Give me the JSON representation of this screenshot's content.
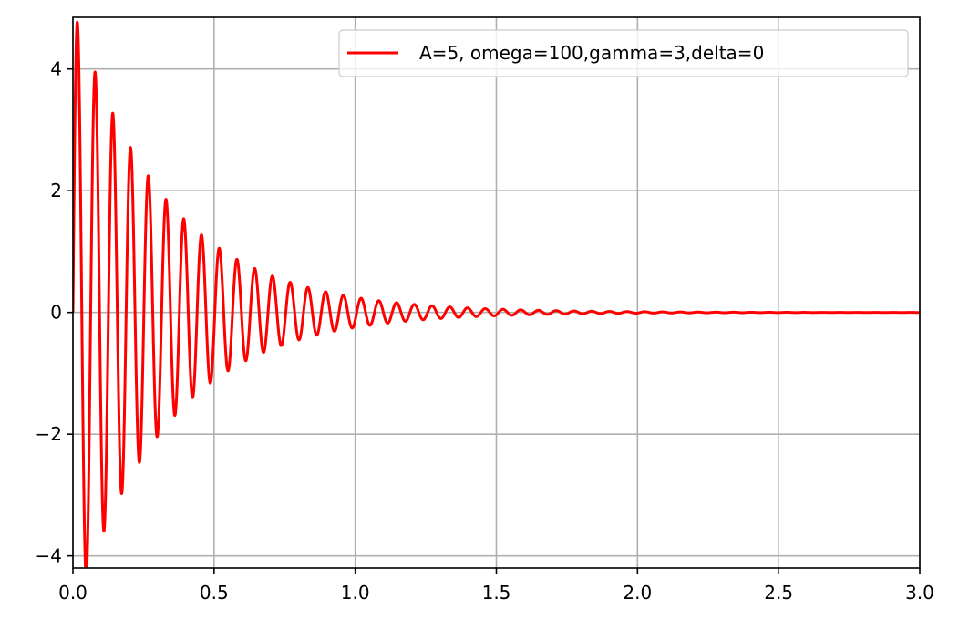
{
  "chart_data": {
    "type": "line",
    "title": "",
    "xlabel": "",
    "ylabel": "",
    "xlim": [
      0,
      3.0
    ],
    "ylim": [
      -4.2,
      4.85
    ],
    "grid": true,
    "legend_position": "upper-right",
    "x_ticks": [
      0.0,
      0.5,
      1.0,
      1.5,
      2.0,
      2.5,
      3.0
    ],
    "x_tick_labels": [
      "0.0",
      "0.5",
      "1.0",
      "1.5",
      "2.0",
      "2.5",
      "3.0"
    ],
    "y_ticks": [
      -4,
      -2,
      0,
      2,
      4
    ],
    "y_tick_labels": [
      "−4",
      "−2",
      "0",
      "2",
      "4"
    ],
    "series": [
      {
        "name": "A=5, omega=100,gamma=3,delta=0",
        "color": "#ff0000",
        "function": "A*exp(-gamma*t)*sin(omega*t+delta)",
        "params": {
          "A": 5,
          "omega": 100,
          "gamma": 3,
          "delta": 0
        },
        "x_range": [
          0,
          3.0
        ]
      }
    ]
  }
}
